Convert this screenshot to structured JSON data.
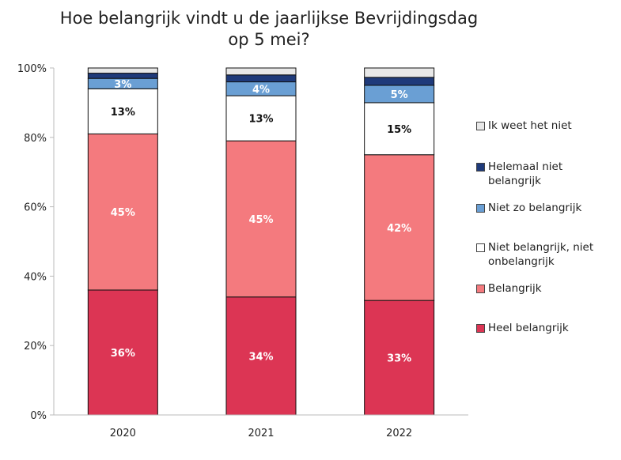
{
  "chart_data": {
    "type": "bar",
    "stacked": true,
    "title_lines": [
      "Hoe belangrijk vindt u de jaarlijkse Bevrijdingsdag",
      "op 5 mei?"
    ],
    "categories": [
      "2020",
      "2021",
      "2022"
    ],
    "ylim": [
      0,
      100
    ],
    "y_ticks": [
      "0%",
      "20%",
      "40%",
      "60%",
      "80%",
      "100%"
    ],
    "legend_position": "right",
    "series": [
      {
        "name": "Heel belangrijk",
        "color": "#DC3554",
        "values": [
          36,
          34,
          33
        ],
        "labels": [
          "36%",
          "34%",
          "33%"
        ],
        "label_color": "#ffffff"
      },
      {
        "name": "Belangrijk",
        "color": "#F47A7E",
        "values": [
          45,
          45,
          42
        ],
        "labels": [
          "45%",
          "45%",
          "42%"
        ],
        "label_color": "#ffffff"
      },
      {
        "name": "Niet belangrijk, niet onbelangrijk",
        "color": "#ffffff",
        "values": [
          13,
          13,
          15
        ],
        "labels": [
          "13%",
          "13%",
          "15%"
        ],
        "label_color": "#111111"
      },
      {
        "name": "Niet zo belangrijk",
        "color": "#6A9FD4",
        "values": [
          3,
          4,
          5
        ],
        "labels": [
          "3%",
          "4%",
          "5%"
        ],
        "label_color": "#ffffff"
      },
      {
        "name": "Helemaal niet belangrijk",
        "color": "#1F3A7A",
        "values": [
          1.5,
          2,
          2.3
        ],
        "labels": [
          "",
          "",
          ""
        ],
        "label_color": "#ffffff"
      },
      {
        "name": "Ik weet het niet",
        "color": "#E8E8E8",
        "values": [
          1.5,
          2,
          2.7
        ],
        "labels": [
          "",
          "",
          ""
        ],
        "label_color": "#111111"
      }
    ],
    "legend_order": [
      5,
      4,
      3,
      2,
      1,
      0
    ]
  }
}
